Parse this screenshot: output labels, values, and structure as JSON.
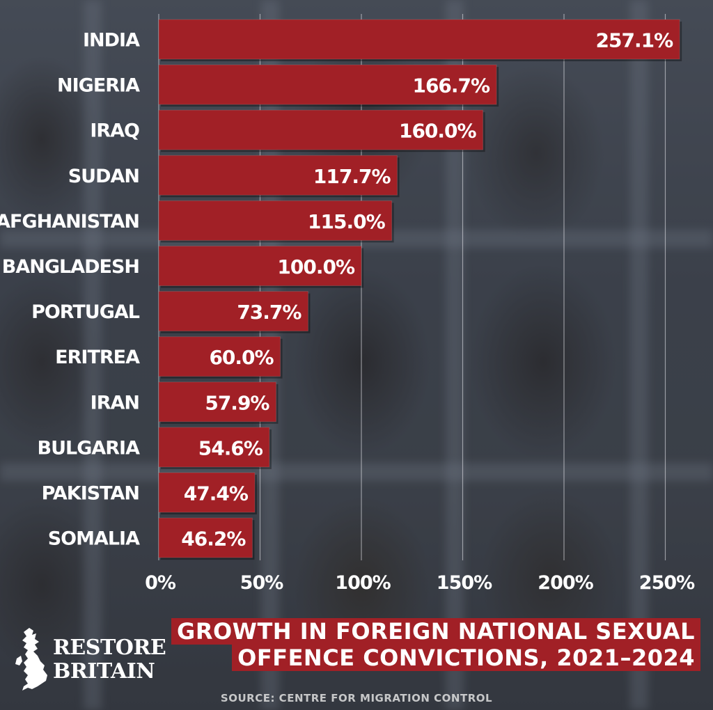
{
  "chart_data": {
    "type": "bar",
    "orientation": "horizontal",
    "title": "GROWTH IN FOREIGN NATIONAL SEXUAL OFFENCE CONVICTIONS, 2021–2024",
    "title_lines": [
      "GROWTH IN FOREIGN NATIONAL SEXUAL",
      "OFFENCE CONVICTIONS, 2021–2024"
    ],
    "categories": [
      "INDIA",
      "NIGERIA",
      "IRAQ",
      "SUDAN",
      "AFGHANISTAN",
      "BANGLADESH",
      "PORTUGAL",
      "ERITREA",
      "IRAN",
      "BULGARIA",
      "PAKISTAN",
      "SOMALIA"
    ],
    "values": [
      257.1,
      166.7,
      160.0,
      117.7,
      115.0,
      100.0,
      73.7,
      60.0,
      57.9,
      54.6,
      47.4,
      46.2
    ],
    "value_labels": [
      "257.1%",
      "166.7%",
      "160.0%",
      "117.7%",
      "115.0%",
      "100.0%",
      "73.7%",
      "60.0%",
      "57.9%",
      "54.6%",
      "47.4%",
      "46.2%"
    ],
    "x_ticks": [
      0,
      50,
      100,
      150,
      200,
      250
    ],
    "x_tick_labels": [
      "0%",
      "50%",
      "100%",
      "150%",
      "200%",
      "250%"
    ],
    "xlim": [
      0,
      260
    ],
    "grid": true,
    "bar_color": "#a12026"
  },
  "logo": {
    "line1": "RESTORE",
    "line2": "BRITAIN"
  },
  "source": "SOURCE: CENTRE FOR MIGRATION CONTROL"
}
